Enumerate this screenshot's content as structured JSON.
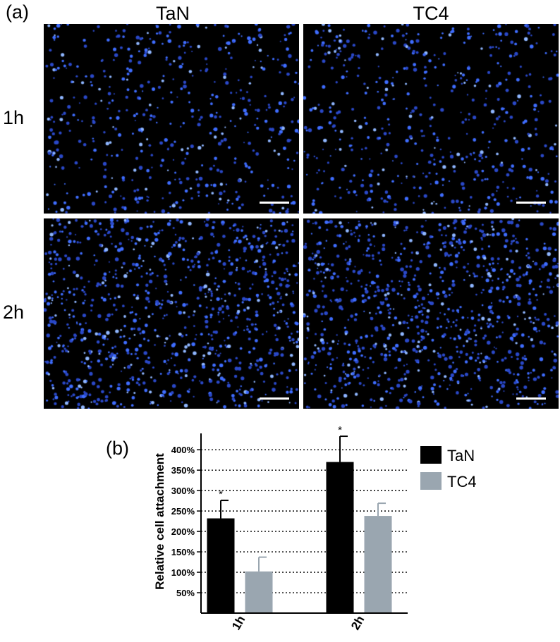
{
  "figure": {
    "panel_a_label": "(a)",
    "panel_b_label": "(b)",
    "columns": [
      "TaN",
      "TC4"
    ],
    "rows": [
      "1h",
      "2h"
    ],
    "micrographs": [
      {
        "row": "1h",
        "column": "TaN",
        "density": "low",
        "seed": 11
      },
      {
        "row": "1h",
        "column": "TC4",
        "density": "low",
        "seed": 23
      },
      {
        "row": "2h",
        "column": "TaN",
        "density": "high",
        "seed": 37
      },
      {
        "row": "2h",
        "column": "TC4",
        "density": "high",
        "seed": 53
      }
    ],
    "cell_color": "#3f6dff",
    "background_color": "#000000"
  },
  "chart_data": {
    "type": "bar",
    "categories": [
      "1h",
      "2h"
    ],
    "series": [
      {
        "name": "TaN",
        "color": "#000000",
        "values": [
          232,
          370
        ],
        "errors": [
          44,
          63
        ],
        "significance": [
          "*",
          "*"
        ]
      },
      {
        "name": "TC4",
        "color": "#9aa6b0",
        "values": [
          102,
          238
        ],
        "errors": [
          35,
          31
        ],
        "significance": [
          "",
          ""
        ]
      }
    ],
    "ylabel": "Relative cell attachment",
    "xlabel": "",
    "yticks": [
      50,
      100,
      150,
      200,
      250,
      300,
      350,
      400
    ],
    "ytick_labels": [
      "50%",
      "100%",
      "150%",
      "200%",
      "250%",
      "300%",
      "350%",
      "400%"
    ],
    "ylim": [
      0,
      440
    ],
    "grid": "horizontal dotted",
    "legend": "right"
  }
}
